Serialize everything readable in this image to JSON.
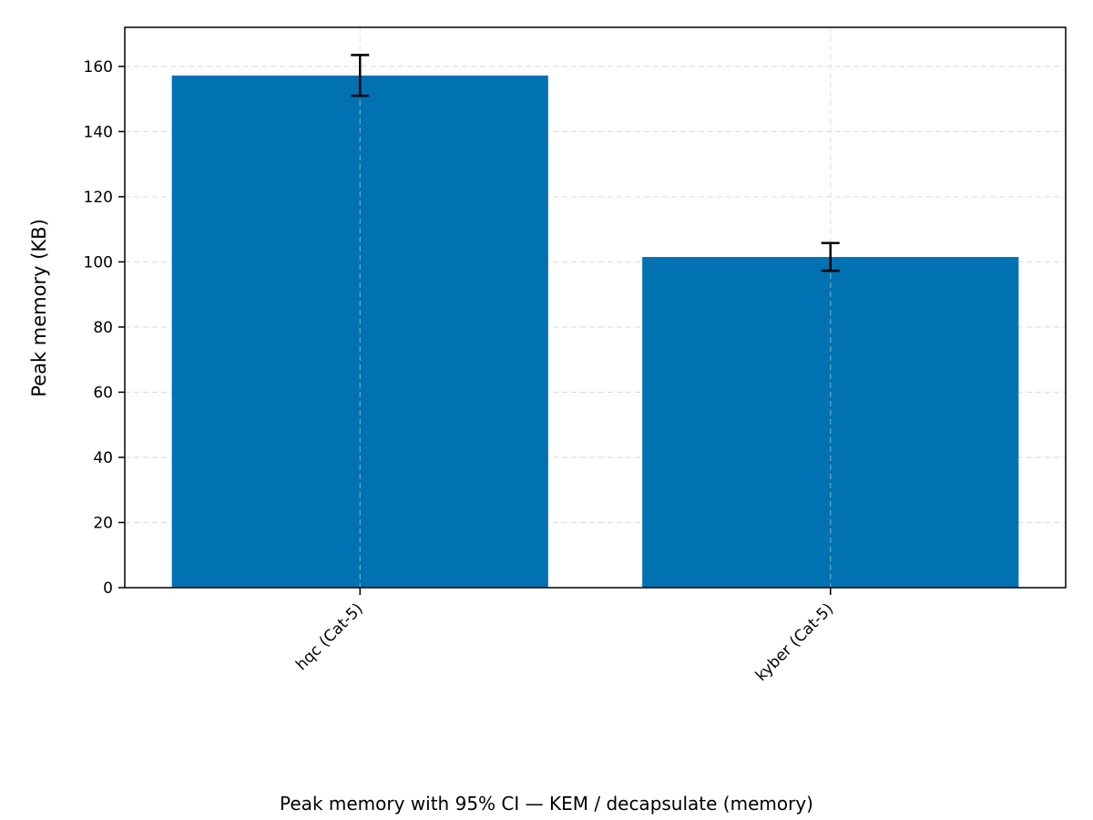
{
  "chart_data": {
    "type": "bar",
    "categories": [
      "hqc (Cat-5)",
      "kyber (Cat-5)"
    ],
    "values": [
      157.2,
      101.5
    ],
    "error_low": [
      151.0,
      97.3
    ],
    "error_high": [
      163.5,
      105.8
    ],
    "ylabel": "Peak memory (KB)",
    "xlabel": "",
    "ylim": [
      0,
      172
    ],
    "yticks": [
      0,
      20,
      40,
      60,
      80,
      100,
      120,
      140,
      160
    ],
    "grid": true,
    "bar_color": "#0072b2",
    "caption": "Peak memory with 95% CI — KEM / decapsulate (memory)"
  }
}
